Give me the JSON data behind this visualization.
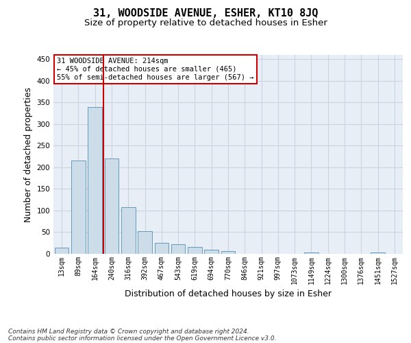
{
  "title": "31, WOODSIDE AVENUE, ESHER, KT10 8JQ",
  "subtitle": "Size of property relative to detached houses in Esher",
  "xlabel": "Distribution of detached houses by size in Esher",
  "ylabel": "Number of detached properties",
  "categories": [
    "13sqm",
    "89sqm",
    "164sqm",
    "240sqm",
    "316sqm",
    "392sqm",
    "467sqm",
    "543sqm",
    "619sqm",
    "694sqm",
    "770sqm",
    "846sqm",
    "921sqm",
    "997sqm",
    "1073sqm",
    "1149sqm",
    "1224sqm",
    "1300sqm",
    "1376sqm",
    "1451sqm",
    "1527sqm"
  ],
  "values": [
    15,
    215,
    340,
    220,
    108,
    52,
    25,
    23,
    16,
    10,
    7,
    0,
    0,
    0,
    0,
    3,
    0,
    0,
    0,
    3,
    0
  ],
  "bar_color": "#ccdce8",
  "bar_edge_color": "#6699bb",
  "grid_color": "#c8d4e0",
  "bg_color": "#e8eef5",
  "vline_color": "#cc0000",
  "annotation_text": "31 WOODSIDE AVENUE: 214sqm\n← 45% of detached houses are smaller (465)\n55% of semi-detached houses are larger (567) →",
  "annotation_box_color": "#ffffff",
  "annotation_edge_color": "#cc0000",
  "footnote1": "Contains HM Land Registry data © Crown copyright and database right 2024.",
  "footnote2": "Contains public sector information licensed under the Open Government Licence v3.0.",
  "ylim": [
    0,
    460
  ],
  "title_fontsize": 11,
  "subtitle_fontsize": 9.5,
  "axis_label_fontsize": 9,
  "tick_fontsize": 7,
  "annotation_fontsize": 7.5,
  "footnote_fontsize": 6.5
}
